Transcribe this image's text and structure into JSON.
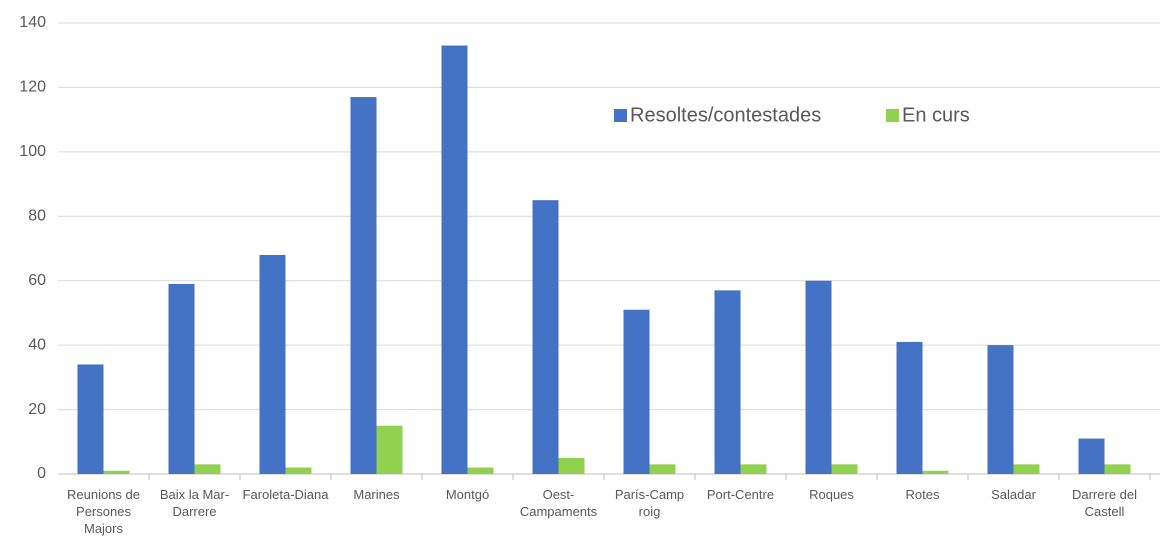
{
  "chart_data": {
    "type": "bar",
    "categories": [
      "Reunions de Persones Majors",
      "Baix la Mar-Darrere",
      "Faroleta-Diana",
      "Marines",
      "Montgó",
      "Oest-Campaments",
      "París-Camp roig",
      "Port-Centre",
      "Roques",
      "Rotes",
      "Saladar",
      "Darrere del Castell"
    ],
    "series": [
      {
        "name": "Resoltes/contestades",
        "color": "#4472c4",
        "values": [
          34,
          59,
          68,
          117,
          133,
          85,
          51,
          57,
          60,
          41,
          40,
          11
        ]
      },
      {
        "name": "En curs",
        "color": "#92d050",
        "values": [
          1,
          3,
          2,
          15,
          2,
          5,
          3,
          3,
          3,
          1,
          3,
          3
        ]
      }
    ],
    "ylim": [
      0,
      140
    ],
    "yticks": [
      0,
      20,
      40,
      60,
      80,
      100,
      120,
      140
    ],
    "grid": true,
    "legend": "top-right"
  }
}
